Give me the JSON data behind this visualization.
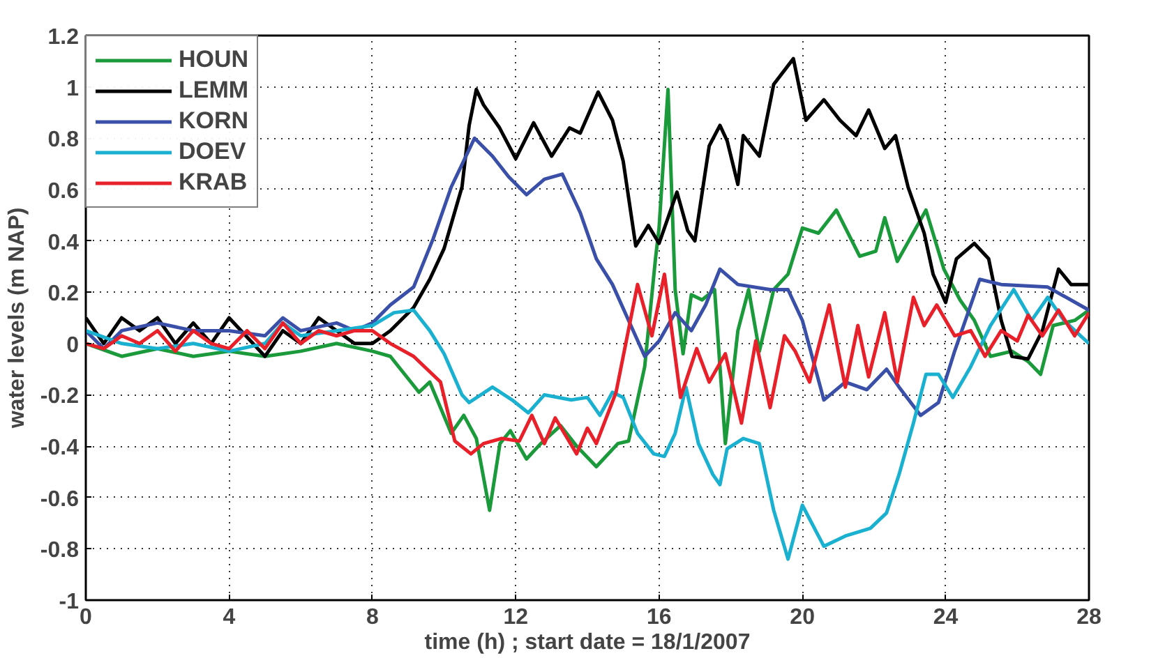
{
  "chart_data": {
    "type": "line",
    "xlabel": "time (h) ; start date = 18/1/2007",
    "ylabel": "water levels (m NAP)",
    "xlim": [
      0,
      28
    ],
    "xticks": [
      0,
      4,
      8,
      12,
      16,
      20,
      24,
      28
    ],
    "ylim": [
      -1,
      1.2
    ],
    "yticks": [
      -1,
      -0.8,
      -0.6,
      -0.4,
      -0.2,
      0,
      0.2,
      0.4,
      0.6,
      0.8,
      1,
      1.2
    ],
    "grid": true,
    "legend": "top left",
    "line_style": "solid",
    "marker": "none",
    "series": [
      {
        "name": "HOUN",
        "color": "#1a9a3a",
        "x": [
          0,
          1,
          2,
          3,
          4,
          5,
          6,
          7,
          8,
          8.5,
          9.3,
          9.6,
          10.2,
          10.55,
          10.9,
          11.27,
          11.56,
          11.85,
          12.3,
          12.7,
          13.25,
          13.7,
          14.25,
          14.85,
          15.15,
          15.6,
          15.9,
          16.0,
          16.25,
          16.45,
          16.67,
          16.9,
          17.2,
          17.55,
          17.85,
          18.2,
          18.5,
          18.8,
          19.2,
          19.6,
          20.0,
          20.45,
          20.95,
          21.6,
          22.05,
          22.3,
          22.65,
          23.45,
          23.95,
          24.4,
          24.8,
          25.25,
          25.85,
          26.3,
          26.65,
          27.0,
          27.6,
          28
        ],
        "values": [
          0,
          -0.05,
          -0.02,
          -0.05,
          -0.03,
          -0.05,
          -0.03,
          0.0,
          -0.03,
          -0.05,
          -0.19,
          -0.15,
          -0.35,
          -0.28,
          -0.37,
          -0.65,
          -0.39,
          -0.34,
          -0.45,
          -0.39,
          -0.32,
          -0.4,
          -0.48,
          -0.39,
          -0.38,
          -0.09,
          0.33,
          0.45,
          0.99,
          0.21,
          -0.04,
          0.19,
          0.17,
          0.21,
          -0.39,
          0.05,
          0.21,
          -0.03,
          0.21,
          0.27,
          0.45,
          0.43,
          0.52,
          0.34,
          0.36,
          0.49,
          0.32,
          0.52,
          0.29,
          0.17,
          0.09,
          -0.05,
          -0.03,
          -0.07,
          -0.12,
          0.07,
          0.09,
          0.13
        ]
      },
      {
        "name": "LEMM",
        "color": "#000000",
        "x": [
          0,
          0.5,
          1,
          1.5,
          2,
          2.5,
          3,
          3.5,
          4,
          5,
          5.5,
          6,
          6.5,
          7,
          7.5,
          8,
          8.5,
          9.15,
          9.6,
          10.0,
          10.5,
          10.7,
          10.9,
          11.1,
          11.55,
          12.0,
          12.5,
          13.0,
          13.5,
          13.8,
          14.3,
          14.7,
          15.0,
          15.35,
          15.7,
          16.0,
          16.5,
          16.8,
          17.0,
          17.4,
          17.7,
          17.9,
          18.2,
          18.35,
          18.8,
          19.2,
          19.75,
          20.1,
          20.6,
          21.05,
          21.5,
          21.85,
          22.3,
          22.6,
          22.95,
          23.4,
          23.65,
          24.0,
          24.3,
          24.8,
          25.2,
          25.55,
          25.85,
          26.3,
          26.7,
          27.15,
          27.5,
          28
        ],
        "values": [
          0.1,
          0.0,
          0.1,
          0.05,
          0.1,
          0.0,
          0.08,
          0.0,
          0.1,
          -0.05,
          0.05,
          0.0,
          0.1,
          0.05,
          0.0,
          0.0,
          0.05,
          0.14,
          0.25,
          0.37,
          0.61,
          0.85,
          0.99,
          0.93,
          0.84,
          0.72,
          0.86,
          0.73,
          0.84,
          0.82,
          0.98,
          0.87,
          0.71,
          0.38,
          0.46,
          0.39,
          0.59,
          0.44,
          0.4,
          0.77,
          0.85,
          0.79,
          0.62,
          0.81,
          0.73,
          1.01,
          1.11,
          0.87,
          0.95,
          0.87,
          0.81,
          0.91,
          0.76,
          0.81,
          0.61,
          0.43,
          0.27,
          0.16,
          0.33,
          0.39,
          0.33,
          0.09,
          -0.05,
          -0.06,
          0.05,
          0.29,
          0.23,
          0.23
        ]
      },
      {
        "name": "KORN",
        "color": "#3a4fa8",
        "x": [
          0,
          0.5,
          1,
          2,
          3,
          4,
          5,
          5.5,
          6,
          7,
          7.5,
          8,
          8.5,
          9.15,
          9.7,
          10.2,
          10.85,
          11.35,
          11.8,
          12.3,
          12.8,
          13.3,
          13.8,
          14.25,
          14.7,
          15.15,
          15.6,
          16.0,
          16.45,
          16.9,
          17.3,
          17.7,
          18.2,
          19.1,
          19.6,
          20.0,
          20.6,
          21.2,
          21.8,
          22.35,
          22.7,
          23.3,
          23.8,
          24.25,
          24.95,
          25.55,
          26.85,
          28
        ],
        "values": [
          0.05,
          -0.02,
          0.05,
          0.08,
          0.05,
          0.05,
          0.03,
          0.1,
          0.05,
          0.08,
          0.05,
          0.08,
          0.15,
          0.22,
          0.41,
          0.61,
          0.8,
          0.73,
          0.65,
          0.58,
          0.64,
          0.66,
          0.51,
          0.33,
          0.23,
          0.09,
          -0.05,
          0.01,
          0.12,
          0.05,
          0.15,
          0.29,
          0.23,
          0.21,
          0.21,
          0.09,
          -0.22,
          -0.15,
          -0.18,
          -0.1,
          -0.17,
          -0.28,
          -0.23,
          -0.03,
          0.25,
          0.23,
          0.22,
          0.13
        ]
      },
      {
        "name": "DOEV",
        "color": "#1ab0d0",
        "x": [
          0,
          1,
          2,
          3,
          4,
          5,
          5.5,
          6,
          7,
          8,
          8.6,
          9.15,
          9.6,
          10.0,
          10.5,
          10.7,
          11.35,
          11.9,
          12.35,
          12.8,
          13.55,
          14.0,
          14.35,
          14.7,
          15.0,
          15.4,
          15.85,
          16.15,
          16.45,
          16.75,
          17.1,
          17.5,
          17.7,
          17.9,
          18.35,
          18.8,
          19.2,
          19.6,
          20.0,
          20.6,
          21.2,
          21.9,
          22.35,
          22.7,
          23.1,
          23.45,
          23.8,
          24.2,
          24.7,
          25.25,
          25.9,
          26.4,
          26.85,
          27.3,
          28
        ],
        "values": [
          0.05,
          0.0,
          -0.02,
          0.0,
          -0.03,
          0.0,
          0.08,
          0.03,
          0.05,
          0.07,
          0.12,
          0.13,
          0.05,
          -0.04,
          -0.2,
          -0.23,
          -0.17,
          -0.22,
          -0.27,
          -0.2,
          -0.22,
          -0.21,
          -0.28,
          -0.19,
          -0.21,
          -0.35,
          -0.43,
          -0.44,
          -0.35,
          -0.17,
          -0.39,
          -0.51,
          -0.55,
          -0.41,
          -0.37,
          -0.39,
          -0.65,
          -0.84,
          -0.63,
          -0.79,
          -0.75,
          -0.72,
          -0.66,
          -0.51,
          -0.31,
          -0.12,
          -0.12,
          -0.21,
          -0.09,
          0.07,
          0.21,
          0.09,
          0.18,
          0.09,
          0.0
        ]
      },
      {
        "name": "KRAB",
        "color": "#e8202a",
        "x": [
          0,
          0.5,
          1,
          1.5,
          2,
          2.5,
          3,
          3.5,
          4,
          4.5,
          5,
          5.5,
          6,
          6.5,
          7,
          7.5,
          8,
          8.5,
          9.15,
          9.9,
          10.3,
          10.75,
          11.1,
          11.6,
          12.1,
          12.45,
          12.8,
          13.1,
          13.7,
          14.0,
          14.25,
          14.8,
          15.0,
          15.4,
          15.8,
          16.15,
          16.6,
          17.05,
          17.4,
          17.85,
          18.3,
          18.7,
          19.1,
          19.5,
          19.8,
          20.2,
          20.75,
          21.2,
          21.55,
          21.85,
          22.3,
          22.65,
          23.1,
          23.4,
          23.75,
          24.25,
          24.7,
          25.1,
          25.55,
          26.0,
          26.3,
          26.7,
          27.15,
          27.6,
          28
        ],
        "values": [
          0.0,
          -0.02,
          0.03,
          0.0,
          0.05,
          -0.03,
          0.05,
          0.0,
          -0.02,
          0.05,
          -0.02,
          0.08,
          0.0,
          0.05,
          0.03,
          0.05,
          0.05,
          0.0,
          -0.05,
          -0.15,
          -0.38,
          -0.43,
          -0.39,
          -0.37,
          -0.38,
          -0.28,
          -0.39,
          -0.29,
          -0.43,
          -0.33,
          -0.39,
          -0.19,
          -0.05,
          0.23,
          0.03,
          0.27,
          -0.21,
          -0.02,
          -0.15,
          -0.04,
          -0.31,
          0.01,
          -0.25,
          0.03,
          -0.03,
          -0.15,
          0.15,
          -0.17,
          0.07,
          -0.13,
          0.12,
          -0.15,
          0.18,
          0.07,
          0.15,
          0.03,
          0.05,
          -0.05,
          0.05,
          0.01,
          0.11,
          0.03,
          0.13,
          0.03,
          0.12
        ]
      }
    ]
  }
}
